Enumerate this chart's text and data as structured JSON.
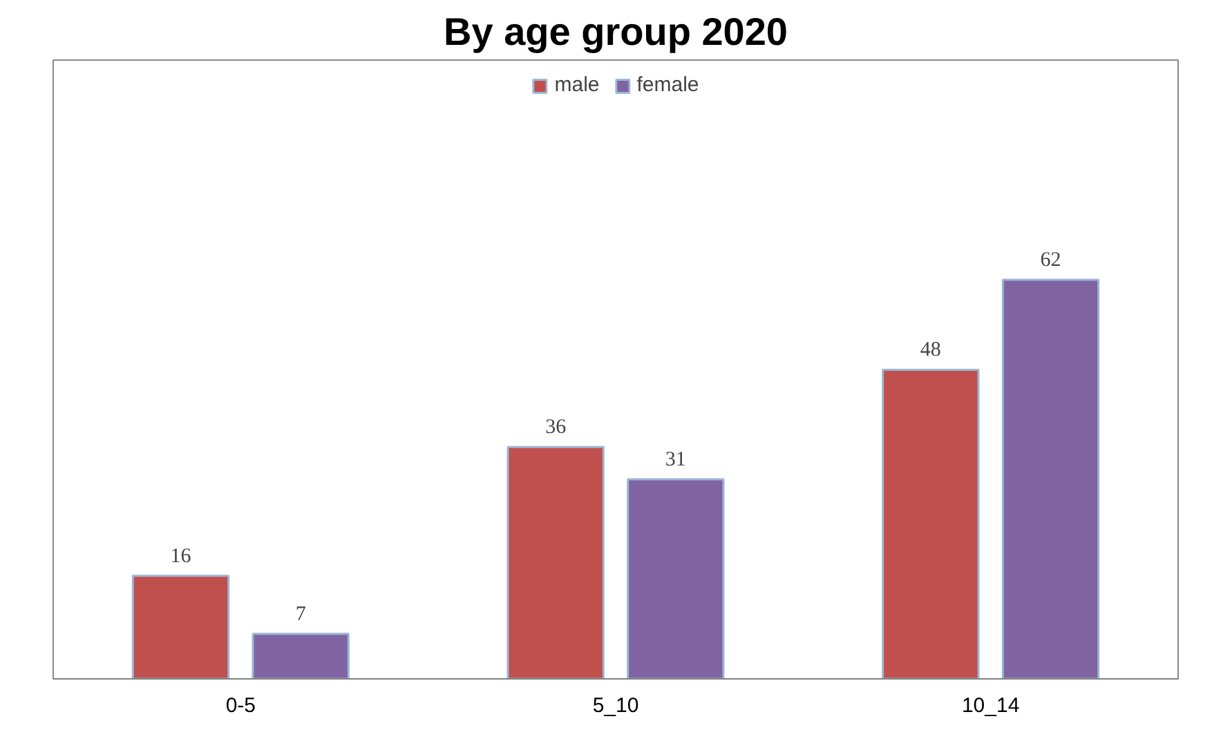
{
  "chart_data": {
    "type": "bar",
    "title": "By age group 2020",
    "categories": [
      "0-5",
      "5_10",
      "10_14"
    ],
    "series": [
      {
        "name": "male",
        "color": "#c0504d",
        "values": [
          16,
          36,
          48
        ]
      },
      {
        "name": "female",
        "color": "#8064a2",
        "values": [
          7,
          31,
          62
        ]
      }
    ],
    "data_labels": true,
    "legend": "top"
  }
}
